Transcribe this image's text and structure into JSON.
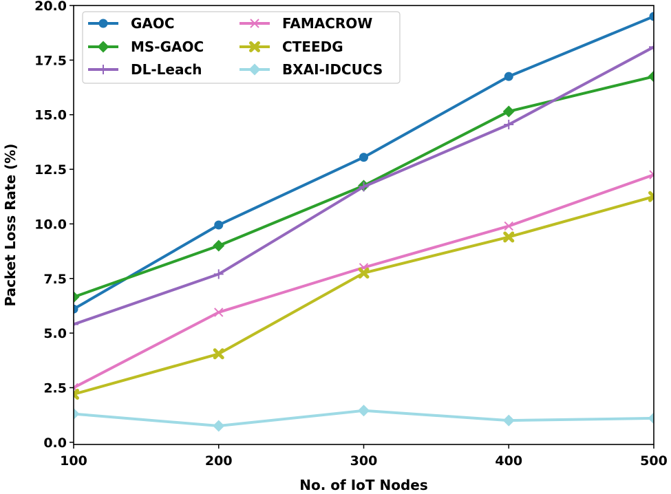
{
  "chart_data": {
    "type": "line",
    "title": "",
    "xlabel": "No. of IoT Nodes",
    "ylabel": "Packet Loss Rate (%)",
    "x": [
      100,
      200,
      300,
      400,
      500
    ],
    "xlim": [
      100,
      500
    ],
    "ylim": [
      -0.1,
      20.0
    ],
    "xticks": [
      100,
      200,
      300,
      400,
      500
    ],
    "xtick_labels": [
      "100",
      "200",
      "300",
      "400",
      "500"
    ],
    "yticks": [
      0.0,
      2.5,
      5.0,
      7.5,
      10.0,
      12.5,
      15.0,
      17.5,
      20.0
    ],
    "ytick_labels": [
      "0.0",
      "2.5",
      "5.0",
      "7.5",
      "10.0",
      "12.5",
      "15.0",
      "17.5",
      "20.0"
    ],
    "grid": false,
    "legend_position": "top-left",
    "series": [
      {
        "name": "GAOC",
        "values": [
          6.1,
          9.95,
          13.05,
          16.75,
          19.5
        ],
        "color": "#1f77b4",
        "marker": "circle"
      },
      {
        "name": "MS-GAOC",
        "values": [
          6.65,
          9.0,
          11.75,
          15.15,
          16.75
        ],
        "color": "#2ca02c",
        "marker": "diamond"
      },
      {
        "name": "DL-Leach",
        "values": [
          5.4,
          7.7,
          11.7,
          14.55,
          18.1
        ],
        "color": "#9467bd",
        "marker": "plus"
      },
      {
        "name": "FAMACROW",
        "values": [
          2.5,
          5.95,
          8.0,
          9.9,
          12.25
        ],
        "color": "#e377c2",
        "marker": "x"
      },
      {
        "name": "CTEEDG",
        "values": [
          2.2,
          4.05,
          7.75,
          9.4,
          11.25
        ],
        "color": "#bcbd22",
        "marker": "x-thick"
      },
      {
        "name": "BXAI-IDCUCS",
        "values": [
          1.3,
          0.75,
          1.45,
          1.0,
          1.1
        ],
        "color": "#9edae5",
        "marker": "diamond"
      }
    ]
  }
}
